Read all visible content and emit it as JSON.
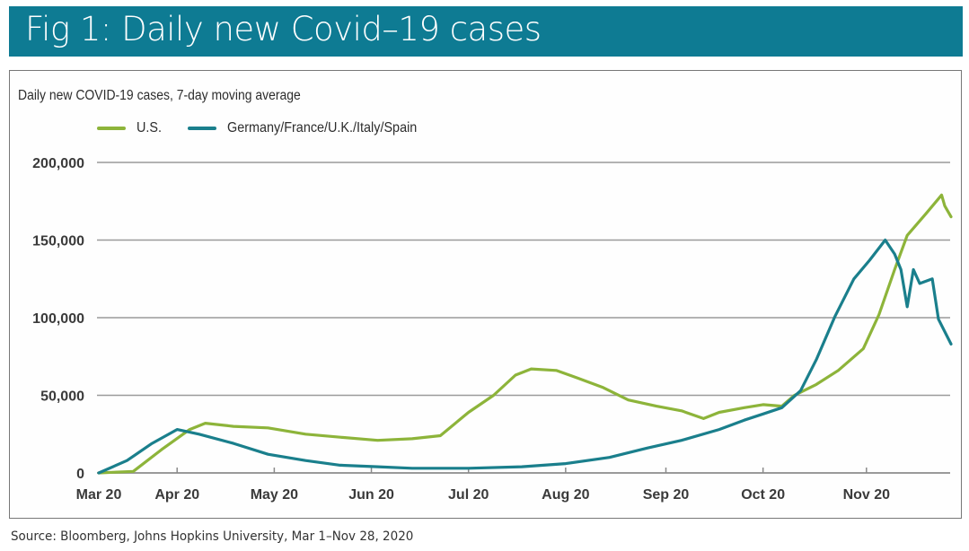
{
  "header": {
    "title": "Fig 1: Daily new Covid–19 cases",
    "color": "#0e7b93"
  },
  "source": "Source: Bloomberg, Johns Hopkins University, Mar 1–Nov 28, 2020",
  "chart_data": {
    "type": "line",
    "title": "Fig 1: Daily new Covid–19 cases",
    "subtitle": "Daily new COVID-19 cases, 7-day moving average",
    "xlabel": "",
    "ylabel": "",
    "x_unit": "days since Mar 1, 2020",
    "xlim": [
      0,
      272
    ],
    "ylim": [
      0,
      200000
    ],
    "grid": true,
    "legend_position": "top-left",
    "y_ticks": [
      {
        "value": 0,
        "label": "0"
      },
      {
        "value": 50000,
        "label": "50,000"
      },
      {
        "value": 100000,
        "label": "100,000"
      },
      {
        "value": 150000,
        "label": "150,000"
      },
      {
        "value": 200000,
        "label": "200,000"
      }
    ],
    "x_ticks": [
      {
        "x": 0,
        "label": "Mar 20"
      },
      {
        "x": 25,
        "label": "Apr 20"
      },
      {
        "x": 56,
        "label": "May 20"
      },
      {
        "x": 87,
        "label": "Jun 20"
      },
      {
        "x": 118,
        "label": "Jul 20"
      },
      {
        "x": 149,
        "label": "Aug 20"
      },
      {
        "x": 181,
        "label": "Sep 20"
      },
      {
        "x": 212,
        "label": "Oct 20"
      },
      {
        "x": 245,
        "label": "Nov 20"
      }
    ],
    "series": [
      {
        "name": "U.S.",
        "color": "#8db43a",
        "points": [
          [
            0,
            0
          ],
          [
            11,
            1000
          ],
          [
            20,
            15000
          ],
          [
            29,
            28000
          ],
          [
            34,
            32000
          ],
          [
            43,
            30000
          ],
          [
            54,
            29000
          ],
          [
            66,
            25000
          ],
          [
            77,
            23000
          ],
          [
            89,
            21000
          ],
          [
            100,
            22000
          ],
          [
            109,
            24000
          ],
          [
            118,
            39000
          ],
          [
            126,
            50000
          ],
          [
            133,
            63000
          ],
          [
            138,
            67000
          ],
          [
            146,
            66000
          ],
          [
            153,
            61000
          ],
          [
            161,
            55000
          ],
          [
            169,
            47000
          ],
          [
            178,
            43000
          ],
          [
            186,
            40000
          ],
          [
            193,
            35000
          ],
          [
            198,
            39000
          ],
          [
            206,
            42000
          ],
          [
            212,
            44000
          ],
          [
            218,
            43000
          ],
          [
            222,
            50000
          ],
          [
            229,
            57000
          ],
          [
            236,
            66000
          ],
          [
            244,
            80000
          ],
          [
            249,
            102000
          ],
          [
            254,
            131000
          ],
          [
            258,
            153000
          ],
          [
            264,
            167000
          ],
          [
            269,
            179000
          ],
          [
            270,
            172000
          ],
          [
            272,
            165000
          ]
        ]
      },
      {
        "name": "Germany/France/U.K./Italy/Spain",
        "color": "#1a7f8c",
        "points": [
          [
            0,
            0
          ],
          [
            9,
            8000
          ],
          [
            17,
            19000
          ],
          [
            25,
            28000
          ],
          [
            32,
            25000
          ],
          [
            43,
            19000
          ],
          [
            54,
            12000
          ],
          [
            66,
            8000
          ],
          [
            77,
            5000
          ],
          [
            89,
            4000
          ],
          [
            100,
            3000
          ],
          [
            118,
            3000
          ],
          [
            135,
            4000
          ],
          [
            149,
            6000
          ],
          [
            163,
            10000
          ],
          [
            175,
            16000
          ],
          [
            186,
            21000
          ],
          [
            198,
            28000
          ],
          [
            206,
            34000
          ],
          [
            212,
            38000
          ],
          [
            218,
            42000
          ],
          [
            224,
            53000
          ],
          [
            229,
            73000
          ],
          [
            235,
            101000
          ],
          [
            241,
            125000
          ],
          [
            246,
            137000
          ],
          [
            251,
            150000
          ],
          [
            254,
            141000
          ],
          [
            256,
            131000
          ],
          [
            258,
            107000
          ],
          [
            260,
            131000
          ],
          [
            262,
            122000
          ],
          [
            266,
            125000
          ],
          [
            268,
            99000
          ],
          [
            272,
            83000
          ]
        ]
      }
    ]
  }
}
